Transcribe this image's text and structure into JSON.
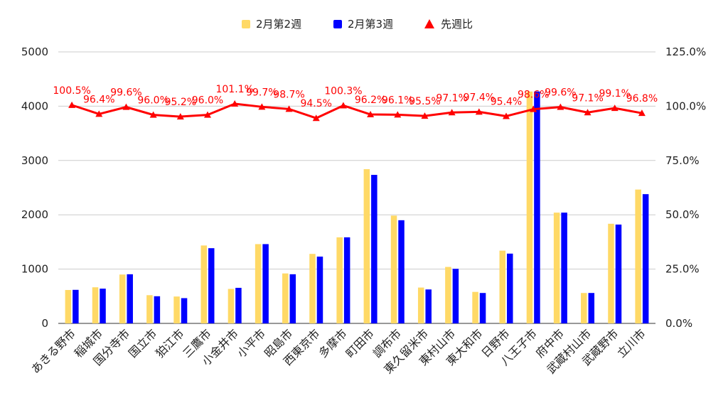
{
  "chart_data": {
    "type": "bar",
    "categories": [
      "あきる野市",
      "稲城市",
      "国分寺市",
      "国立市",
      "狛江市",
      "三鷹市",
      "小金井市",
      "小平市",
      "昭島市",
      "西東京市",
      "多摩市",
      "町田市",
      "調布市",
      "東久留米市",
      "東村山市",
      "東大和市",
      "日野市",
      "八王子市",
      "府中市",
      "武蔵村山市",
      "武蔵野市",
      "立川市"
    ],
    "series": [
      {
        "name": "2月第2週",
        "axis": "left",
        "color": "#ffd966",
        "values": [
          615,
          665,
          900,
          520,
          495,
          1435,
          635,
          1460,
          920,
          1280,
          1585,
          2840,
          1985,
          660,
          1040,
          580,
          1340,
          4270,
          2040,
          560,
          1835,
          2465
        ]
      },
      {
        "name": "2月第3週",
        "axis": "left",
        "color": "#0000ff",
        "values": [
          618,
          640,
          905,
          500,
          465,
          1385,
          655,
          1460,
          905,
          1230,
          1585,
          2735,
          1900,
          625,
          1005,
          560,
          1285,
          4270,
          2040,
          560,
          1820,
          2380
        ]
      }
    ],
    "ratio": {
      "name": "先週比",
      "axis": "right",
      "color": "#ff0000",
      "values": [
        100.5,
        96.4,
        99.6,
        96.0,
        95.2,
        96.0,
        101.1,
        99.7,
        98.7,
        94.5,
        100.3,
        96.2,
        96.1,
        95.5,
        97.1,
        97.4,
        95.4,
        98.6,
        99.6,
        97.1,
        99.1,
        96.8
      ],
      "labels": [
        "100.5%",
        "96.4%",
        "99.6%",
        "96.0%",
        "95.2%",
        "96.0%",
        "101.1%",
        "99.7%",
        "98.7%",
        "94.5%",
        "100.3%",
        "96.2%",
        "96.1%",
        "95.5%",
        "97.1%",
        "97.4%",
        "95.4%",
        "98.6%",
        "99.6%",
        "97.1%",
        "99.1%",
        "96.8%"
      ]
    },
    "y_left": {
      "min": 0,
      "max": 5000,
      "ticks": [
        "0",
        "1000",
        "2000",
        "3000",
        "4000",
        "5000"
      ]
    },
    "y_right": {
      "min": 0,
      "max": 125,
      "ticks": [
        "0.0%",
        "25.0%",
        "50.0%",
        "75.0%",
        "100.0%",
        "125.0%"
      ]
    },
    "grid": true,
    "legend_position": "top-center"
  }
}
